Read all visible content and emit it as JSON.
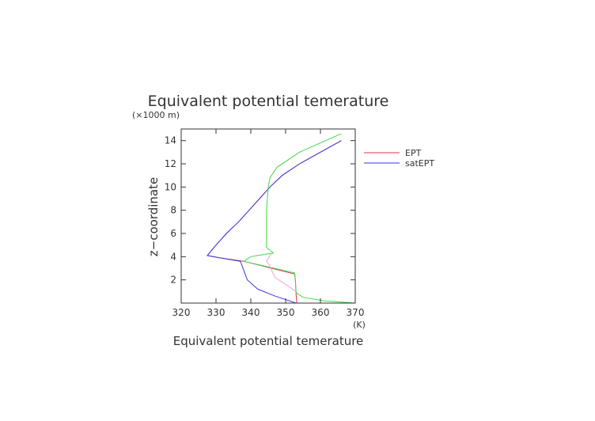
{
  "chart_data": {
    "type": "line",
    "title": "Equivalent potential temerature",
    "xlabel": "Equivalent potential temerature",
    "xunit": "(K)",
    "ylabel": "z−coordinate",
    "yunit": "(×1000 m)",
    "xlim": [
      320,
      370
    ],
    "ylim": [
      0,
      15
    ],
    "xticks": [
      320,
      330,
      340,
      350,
      360,
      370
    ],
    "yticks": [
      2,
      4,
      6,
      8,
      10,
      12,
      14
    ],
    "grid": false,
    "legend_position": "right",
    "series": [
      {
        "name": "EPT",
        "color": "#e8304a",
        "x": [
          353.2,
          353.0,
          352.8,
          352.6,
          338.0,
          331.0,
          327.5,
          330.0,
          333.0,
          336.5,
          339.5,
          342.5,
          345.5,
          349.0,
          354.0,
          360.0,
          366.0
        ],
        "y": [
          0.0,
          0.8,
          2.0,
          2.5,
          3.6,
          3.9,
          4.1,
          5.0,
          6.0,
          7.0,
          8.0,
          9.0,
          10.0,
          11.0,
          12.0,
          13.0,
          14.0
        ]
      },
      {
        "name": "satEPT",
        "color": "#3a3adf",
        "x": [
          353.0,
          347.0,
          342.0,
          339.0,
          337.0,
          331.0,
          327.5,
          330.0,
          333.0,
          336.5,
          339.5,
          342.5,
          345.5,
          349.0,
          354.0,
          360.0,
          366.0
        ],
        "y": [
          0.0,
          0.6,
          1.2,
          2.0,
          3.6,
          3.9,
          4.1,
          5.0,
          6.0,
          7.0,
          8.0,
          9.0,
          10.0,
          11.0,
          12.0,
          13.0,
          14.0
        ]
      },
      {
        "name": "",
        "color": "#3ed94a",
        "x": [
          370.0,
          361.0,
          355.0,
          353.0,
          352.8,
          352.6,
          338.0,
          340.0,
          344.0,
          346.5,
          344.5,
          344.5,
          344.5,
          345.0,
          345.5,
          347.5,
          354.0,
          360.0,
          366.0
        ],
        "y": [
          0.0,
          0.2,
          0.5,
          0.9,
          2.0,
          2.6,
          3.6,
          4.0,
          4.2,
          4.3,
          4.8,
          6.0,
          8.0,
          10.0,
          10.8,
          11.7,
          13.0,
          13.8,
          14.6
        ]
      },
      {
        "name": "",
        "color": "#f0a0d8",
        "x": [
          353.0,
          350.0,
          347.0,
          346.0,
          345.5,
          344.5,
          346.0
        ],
        "y": [
          1.0,
          1.6,
          2.2,
          2.8,
          3.2,
          3.6,
          4.3
        ]
      }
    ]
  }
}
